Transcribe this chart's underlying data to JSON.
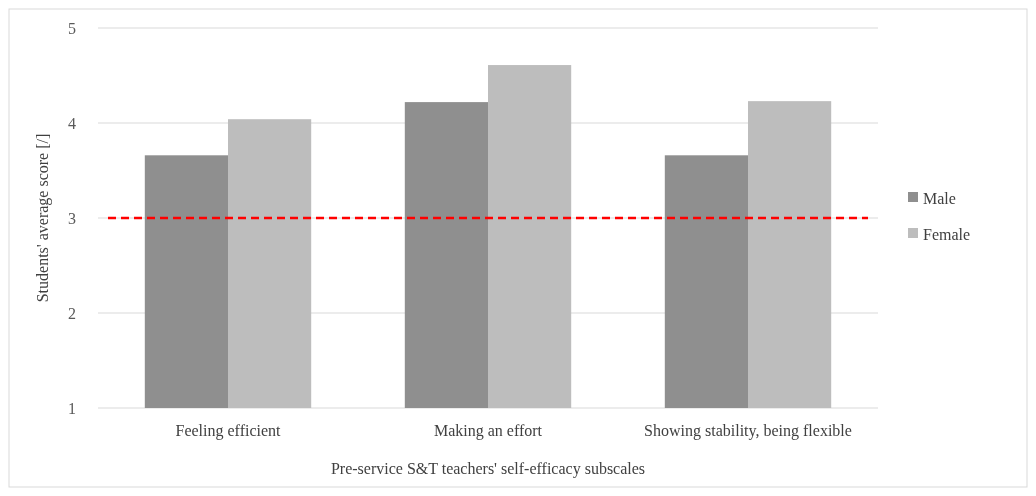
{
  "chart_data": {
    "type": "bar",
    "xlabel": "Pre-service S&T teachers' self-efficacy subscales",
    "ylabel": "Students' average score [/]",
    "categories": [
      "Feeling efficient",
      "Making an effort",
      "Showing stability, being flexible"
    ],
    "series": [
      {
        "name": "Male",
        "color": "#8f8f8f",
        "values": [
          3.66,
          4.22,
          3.66
        ]
      },
      {
        "name": "Female",
        "color": "#bdbdbd",
        "values": [
          4.04,
          4.61,
          4.23
        ]
      }
    ],
    "ylim": [
      1,
      5
    ],
    "yticks": [
      1,
      2,
      3,
      4,
      5
    ],
    "grid": "y",
    "legend": "right",
    "ref_lines": [
      {
        "axis": "y",
        "value": 3,
        "color": "#ff0000",
        "line_style": "dashed"
      }
    ]
  }
}
